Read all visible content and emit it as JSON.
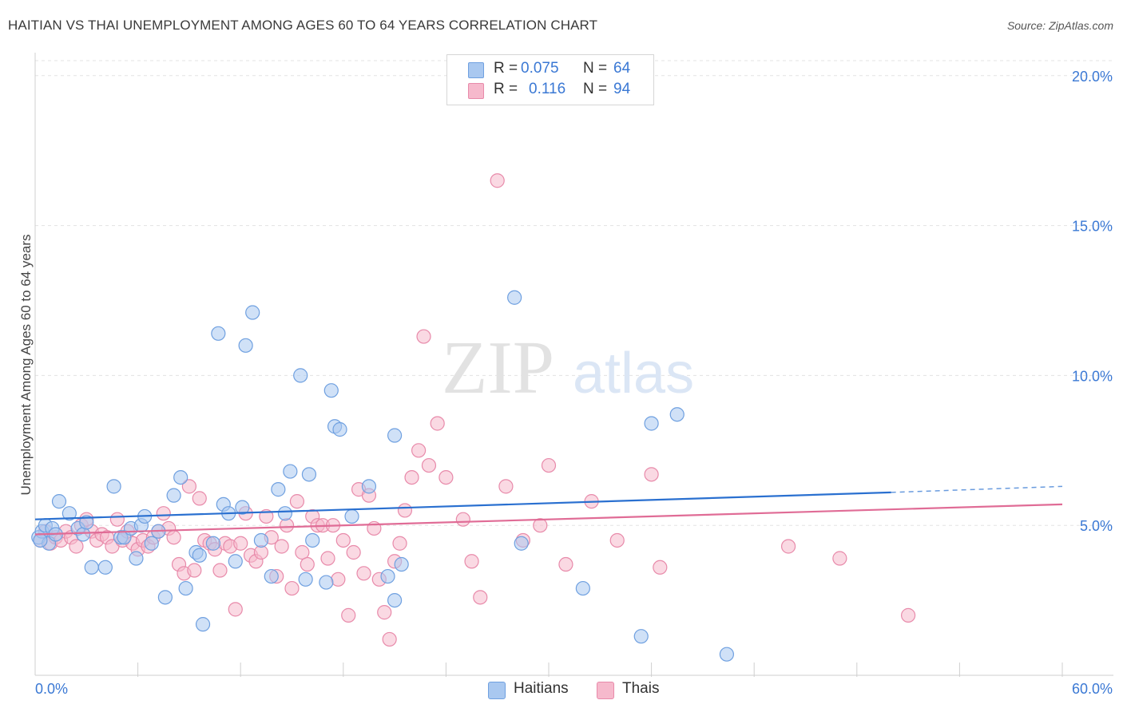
{
  "title": "HAITIAN VS THAI UNEMPLOYMENT AMONG AGES 60 TO 64 YEARS CORRELATION CHART",
  "source": "Source: ZipAtlas.com",
  "watermark": {
    "part1": "ZIP",
    "part2": "atlas"
  },
  "legend": {
    "rows": [
      {
        "r_label": "R =",
        "r_value": "0.075",
        "n_label": "N =",
        "n_value": "64",
        "color": "#a9c8f0"
      },
      {
        "r_label": "R =",
        "r_value": "0.116",
        "n_label": "N =",
        "n_value": "94",
        "color": "#f6b9cc"
      }
    ]
  },
  "bottom_legend": {
    "haitians": "Haitians",
    "thais": "Thais"
  },
  "chart_data": {
    "type": "scatter",
    "title": "HAITIAN VS THAI UNEMPLOYMENT AMONG AGES 60 TO 64 YEARS CORRELATION CHART",
    "ylabel": "Unemployment Among Ages 60 to 64 years",
    "xlabel": "",
    "xlim": [
      0,
      60
    ],
    "ylim": [
      0,
      20.5
    ],
    "x_tick_labels": [
      "0.0%",
      "60.0%"
    ],
    "y_tick_labels": [
      "5.0%",
      "10.0%",
      "15.0%",
      "20.0%"
    ],
    "y_ticks": [
      5,
      10,
      15,
      20
    ],
    "grid": "horizontal dashed",
    "legend_position": "top-center",
    "series": [
      {
        "name": "Haitians",
        "color": "#6fa0e0",
        "fill": "#a9c8f0",
        "trend": {
          "x": [
            0,
            50
          ],
          "y": [
            5.2,
            6.1
          ],
          "dashed_to_x": 60,
          "dashed_to_y": 6.3,
          "color": "#2a70d0"
        },
        "points": [
          [
            0.2,
            4.6
          ],
          [
            0.4,
            4.8
          ],
          [
            0.6,
            5.0
          ],
          [
            0.8,
            4.4
          ],
          [
            1.0,
            4.9
          ],
          [
            1.2,
            4.7
          ],
          [
            1.4,
            5.8
          ],
          [
            2.0,
            5.4
          ],
          [
            2.5,
            4.9
          ],
          [
            2.8,
            4.7
          ],
          [
            3.0,
            5.1
          ],
          [
            3.3,
            3.6
          ],
          [
            4.1,
            3.6
          ],
          [
            4.6,
            6.3
          ],
          [
            5.0,
            4.6
          ],
          [
            5.2,
            4.6
          ],
          [
            5.6,
            4.9
          ],
          [
            5.9,
            3.9
          ],
          [
            6.2,
            5.0
          ],
          [
            6.4,
            5.3
          ],
          [
            6.8,
            4.4
          ],
          [
            7.2,
            4.8
          ],
          [
            7.6,
            2.6
          ],
          [
            8.1,
            6.0
          ],
          [
            8.5,
            6.6
          ],
          [
            8.8,
            2.9
          ],
          [
            9.4,
            4.1
          ],
          [
            9.6,
            4.0
          ],
          [
            9.8,
            1.7
          ],
          [
            10.4,
            4.4
          ],
          [
            10.7,
            11.4
          ],
          [
            11.0,
            5.7
          ],
          [
            11.3,
            5.4
          ],
          [
            11.7,
            3.8
          ],
          [
            12.1,
            5.6
          ],
          [
            12.3,
            11.0
          ],
          [
            12.7,
            12.1
          ],
          [
            13.2,
            4.5
          ],
          [
            13.8,
            3.3
          ],
          [
            14.2,
            6.2
          ],
          [
            14.6,
            5.4
          ],
          [
            14.9,
            6.8
          ],
          [
            15.5,
            10.0
          ],
          [
            15.8,
            3.2
          ],
          [
            16.0,
            6.7
          ],
          [
            16.2,
            4.5
          ],
          [
            17.0,
            3.1
          ],
          [
            17.3,
            9.5
          ],
          [
            17.5,
            8.3
          ],
          [
            17.8,
            8.2
          ],
          [
            18.5,
            5.3
          ],
          [
            19.5,
            6.3
          ],
          [
            20.6,
            3.3
          ],
          [
            21.0,
            2.5
          ],
          [
            21.0,
            8.0
          ],
          [
            21.4,
            3.7
          ],
          [
            28.0,
            12.6
          ],
          [
            28.4,
            4.4
          ],
          [
            32.0,
            2.9
          ],
          [
            35.4,
            1.3
          ],
          [
            36.0,
            8.4
          ],
          [
            37.5,
            8.7
          ],
          [
            40.4,
            0.7
          ],
          [
            0.3,
            4.5
          ]
        ]
      },
      {
        "name": "Thais",
        "color": "#e88aaa",
        "fill": "#f6b9cc",
        "trend": {
          "x": [
            0,
            60
          ],
          "y": [
            4.7,
            5.7
          ],
          "color": "#e06c96"
        },
        "points": [
          [
            0.3,
            4.5
          ],
          [
            0.6,
            4.8
          ],
          [
            0.9,
            4.4
          ],
          [
            1.2,
            4.6
          ],
          [
            1.5,
            4.5
          ],
          [
            1.8,
            4.8
          ],
          [
            2.1,
            4.6
          ],
          [
            2.4,
            4.3
          ],
          [
            2.7,
            5.0
          ],
          [
            3.0,
            5.2
          ],
          [
            3.3,
            4.8
          ],
          [
            3.6,
            4.5
          ],
          [
            3.9,
            4.7
          ],
          [
            4.2,
            4.6
          ],
          [
            4.5,
            4.3
          ],
          [
            4.8,
            5.2
          ],
          [
            5.1,
            4.5
          ],
          [
            5.4,
            4.8
          ],
          [
            5.7,
            4.4
          ],
          [
            6.0,
            4.2
          ],
          [
            6.3,
            4.5
          ],
          [
            6.6,
            4.3
          ],
          [
            6.9,
            4.6
          ],
          [
            7.2,
            4.8
          ],
          [
            7.5,
            5.4
          ],
          [
            7.8,
            4.9
          ],
          [
            8.1,
            4.6
          ],
          [
            8.4,
            3.7
          ],
          [
            8.7,
            3.4
          ],
          [
            9.0,
            6.3
          ],
          [
            9.3,
            3.5
          ],
          [
            9.6,
            5.9
          ],
          [
            9.9,
            4.5
          ],
          [
            10.2,
            4.4
          ],
          [
            10.5,
            4.2
          ],
          [
            10.8,
            3.5
          ],
          [
            11.1,
            4.4
          ],
          [
            11.4,
            4.3
          ],
          [
            11.7,
            2.2
          ],
          [
            12.0,
            4.4
          ],
          [
            12.3,
            5.4
          ],
          [
            12.6,
            4.0
          ],
          [
            12.9,
            3.8
          ],
          [
            13.2,
            4.1
          ],
          [
            13.5,
            5.3
          ],
          [
            13.8,
            4.6
          ],
          [
            14.1,
            3.3
          ],
          [
            14.4,
            4.3
          ],
          [
            14.7,
            5.0
          ],
          [
            15.0,
            2.9
          ],
          [
            15.3,
            5.8
          ],
          [
            15.6,
            4.1
          ],
          [
            15.9,
            3.7
          ],
          [
            16.2,
            5.3
          ],
          [
            16.5,
            5.0
          ],
          [
            16.8,
            5.0
          ],
          [
            17.1,
            3.9
          ],
          [
            17.4,
            5.0
          ],
          [
            17.7,
            3.2
          ],
          [
            18.0,
            4.5
          ],
          [
            18.3,
            2.0
          ],
          [
            18.6,
            4.1
          ],
          [
            18.9,
            6.2
          ],
          [
            19.2,
            3.4
          ],
          [
            19.5,
            6.0
          ],
          [
            19.8,
            4.9
          ],
          [
            20.1,
            3.2
          ],
          [
            20.4,
            2.1
          ],
          [
            20.7,
            1.2
          ],
          [
            21.0,
            3.8
          ],
          [
            21.3,
            4.4
          ],
          [
            21.6,
            5.5
          ],
          [
            22.0,
            6.6
          ],
          [
            22.4,
            7.5
          ],
          [
            22.7,
            11.3
          ],
          [
            23.0,
            7.0
          ],
          [
            23.5,
            8.4
          ],
          [
            24.0,
            6.6
          ],
          [
            25.0,
            5.2
          ],
          [
            25.5,
            3.8
          ],
          [
            26.0,
            2.6
          ],
          [
            27.0,
            16.5
          ],
          [
            27.5,
            6.3
          ],
          [
            28.5,
            4.5
          ],
          [
            29.5,
            5.0
          ],
          [
            30.0,
            7.0
          ],
          [
            31.0,
            3.7
          ],
          [
            32.5,
            5.8
          ],
          [
            34.0,
            4.5
          ],
          [
            36.0,
            6.7
          ],
          [
            36.5,
            3.6
          ],
          [
            44.0,
            4.3
          ],
          [
            47.0,
            3.9
          ],
          [
            51.0,
            2.0
          ]
        ]
      }
    ]
  }
}
